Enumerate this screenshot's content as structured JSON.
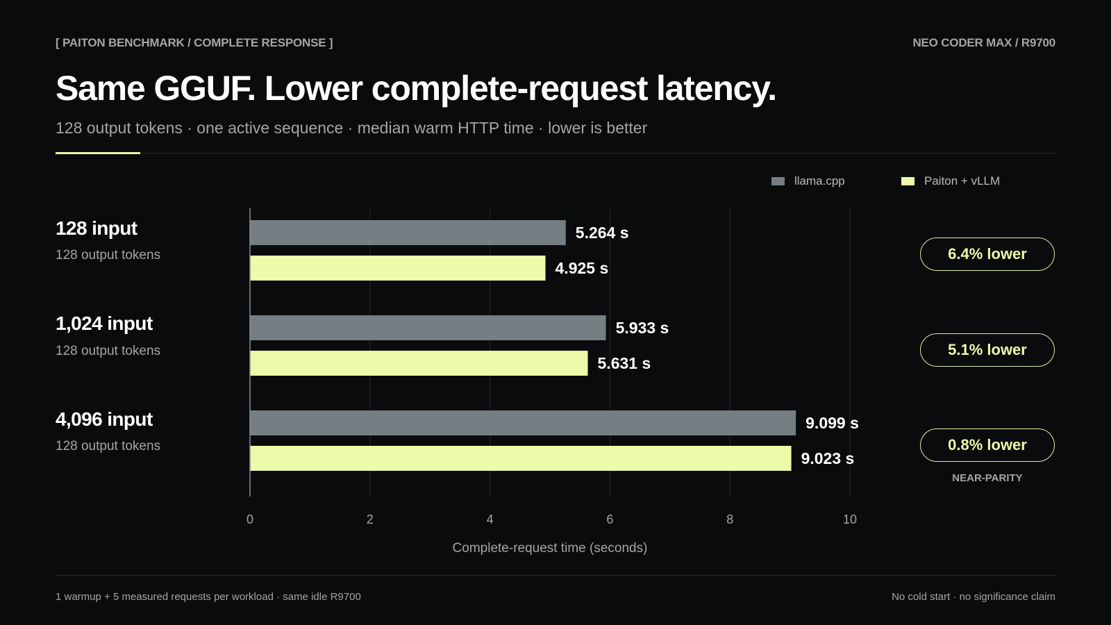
{
  "header": {
    "kicker_left": "[ PAITON BENCHMARK / COMPLETE RESPONSE ]",
    "kicker_right": "NEO CODER MAX / R9700",
    "title": "Same GGUF. Lower complete-request latency.",
    "subtitle": "128 output tokens · one active sequence · median warm HTTP time · lower is better"
  },
  "legend": [
    {
      "label": "llama.cpp",
      "color": "#757e82"
    },
    {
      "label": "Paiton + vLLM",
      "color": "#ecfaa9"
    }
  ],
  "groups": [
    {
      "title": "128 input",
      "sub": "128 output tokens",
      "badge": "6.4% lower",
      "note": ""
    },
    {
      "title": "1,024 input",
      "sub": "128 output tokens",
      "badge": "5.1% lower",
      "note": ""
    },
    {
      "title": "4,096 input",
      "sub": "128 output tokens",
      "badge": "0.8% lower",
      "note": "NEAR-PARITY"
    }
  ],
  "chart_data": {
    "type": "bar",
    "orientation": "horizontal",
    "categories": [
      "128 input",
      "1,024 input",
      "4,096 input"
    ],
    "series": [
      {
        "name": "llama.cpp",
        "values": [
          5.264,
          5.933,
          9.099
        ],
        "labels": [
          "5.264 s",
          "5.933 s",
          "9.099 s"
        ],
        "color": "#757e82"
      },
      {
        "name": "Paiton + vLLM",
        "values": [
          4.925,
          5.631,
          9.023
        ],
        "labels": [
          "4.925 s",
          "5.631 s",
          "9.023 s"
        ],
        "color": "#ecfaa9"
      }
    ],
    "xlabel": "Complete-request time (seconds)",
    "xlim": [
      0,
      10
    ],
    "xticks": [
      0,
      2,
      4,
      6,
      8,
      10
    ],
    "grid": true,
    "legend_position": "top-right"
  },
  "footer": {
    "left": "1 warmup + 5 measured requests per workload · same idle R9700",
    "right": "No cold start · no significance claim"
  }
}
